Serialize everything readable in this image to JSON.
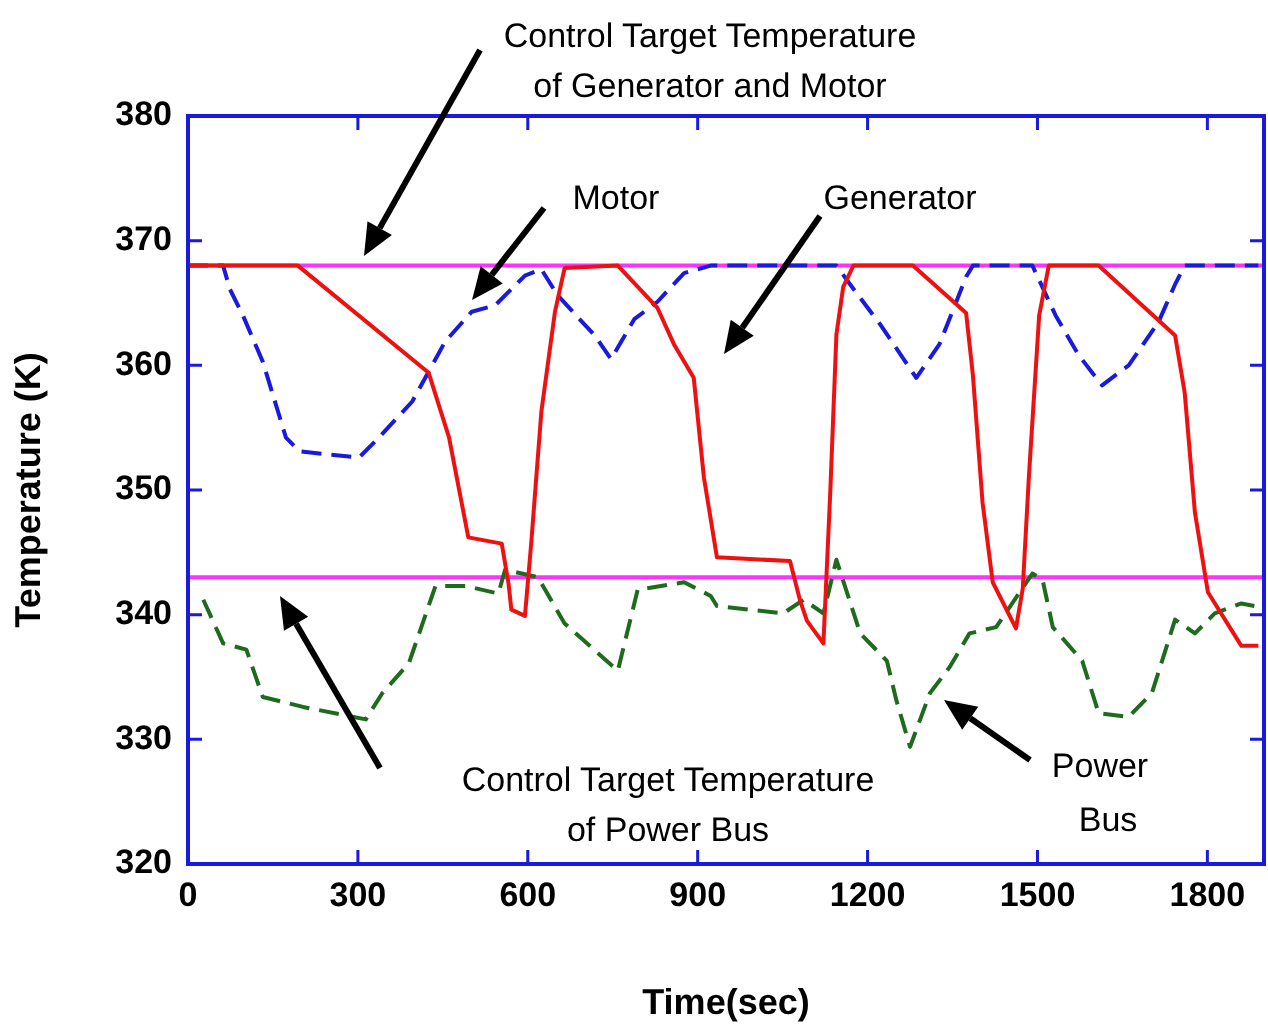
{
  "chart_data": {
    "type": "line",
    "xlabel": "Time(sec)",
    "ylabel": "Temperature (K)",
    "xlim": [
      0,
      1900
    ],
    "xticks": [
      0,
      300,
      600,
      900,
      1200,
      1500,
      1800
    ],
    "ylim": [
      320,
      380
    ],
    "yticks": [
      320,
      330,
      340,
      350,
      360,
      370,
      380
    ],
    "grid": false,
    "legend": false,
    "marker": "none",
    "series": [
      {
        "name": "Generator",
        "color": "#ee1111",
        "line_style": "solid",
        "x": [
          0,
          194,
          425,
          461,
          495,
          554,
          566,
          571,
          595,
          606,
          624,
          648,
          665,
          759,
          829,
          858,
          893,
          911,
          934,
          1063,
          1081,
          1093,
          1122,
          1134,
          1145,
          1157,
          1175,
          1280,
          1374,
          1386,
          1403,
          1421,
          1462,
          1474,
          1485,
          1503,
          1520,
          1608,
          1743,
          1760,
          1778,
          1801,
          1860,
          1890
        ],
        "values": [
          368,
          368,
          359.4,
          354.2,
          346.2,
          345.7,
          342.5,
          340.4,
          339.9,
          345.7,
          356.3,
          364.3,
          367.8,
          368,
          364.6,
          361.7,
          359,
          351,
          344.6,
          344.3,
          341.1,
          339.5,
          337.7,
          349.7,
          362.5,
          366.3,
          368,
          368,
          364.2,
          359.2,
          349,
          342.6,
          338.9,
          342.1,
          351.2,
          364,
          368,
          368,
          362.4,
          357.8,
          348.2,
          341.8,
          337.5,
          337.5
        ]
      },
      {
        "name": "Motor",
        "color": "#1a1adc",
        "line_style": "dashed",
        "x": [
          0,
          62,
          74,
          97,
          132,
          173,
          197,
          302,
          337,
          396,
          454,
          501,
          542,
          595,
          624,
          653,
          718,
          747,
          788,
          829,
          876,
          923,
          1145,
          1169,
          1222,
          1286,
          1327,
          1374,
          1386,
          1491,
          1532,
          1573,
          1614,
          1661,
          1714,
          1743,
          1760,
          1890
        ],
        "values": [
          368,
          368,
          366.1,
          364,
          360.3,
          354.2,
          353.1,
          352.6,
          354.2,
          357.1,
          361.9,
          364.3,
          364.8,
          367.2,
          367.7,
          365.6,
          362.4,
          360.5,
          363.7,
          365.1,
          367.4,
          368,
          368,
          366.5,
          363.3,
          359,
          361.7,
          367.1,
          368,
          368,
          364,
          360.8,
          358.4,
          360,
          363.5,
          366.5,
          368,
          368
        ]
      },
      {
        "name": "Power Bus",
        "color": "#1e6b1e",
        "line_style": "dashed",
        "x": [
          27,
          62,
          103,
          132,
          203,
          314,
          343,
          390,
          437,
          490,
          548,
          560,
          618,
          665,
          712,
          759,
          794,
          876,
          923,
          934,
          1051,
          1087,
          1122,
          1145,
          1187,
          1234,
          1251,
          1275,
          1310,
          1345,
          1380,
          1427,
          1491,
          1509,
          1527,
          1579,
          1608,
          1661,
          1702,
          1743,
          1778,
          1813,
          1860,
          1883
        ],
        "values": [
          341.2,
          337.7,
          337.2,
          333.4,
          332.6,
          331.6,
          333.7,
          336.1,
          342.3,
          342.3,
          341.7,
          343.6,
          343,
          339.3,
          337.4,
          335.5,
          342,
          342.6,
          341.5,
          340.7,
          340.1,
          341.2,
          340.1,
          344.4,
          338.5,
          336.3,
          333.1,
          329.4,
          333.7,
          335.8,
          338.5,
          339,
          343.3,
          342.8,
          339,
          336.3,
          332.1,
          331.8,
          333.7,
          339.6,
          338.5,
          340.1,
          340.9,
          340.7
        ]
      }
    ],
    "ref_lines": [
      {
        "axis": "y",
        "value": 368,
        "color": "#ff33ff"
      },
      {
        "axis": "y",
        "value": 343,
        "color": "#ff33ff"
      }
    ],
    "annotations": [
      "Control Target Temperature\nof Generator and Motor",
      "Control Target Temperature\nof Power Bus"
    ]
  }
}
